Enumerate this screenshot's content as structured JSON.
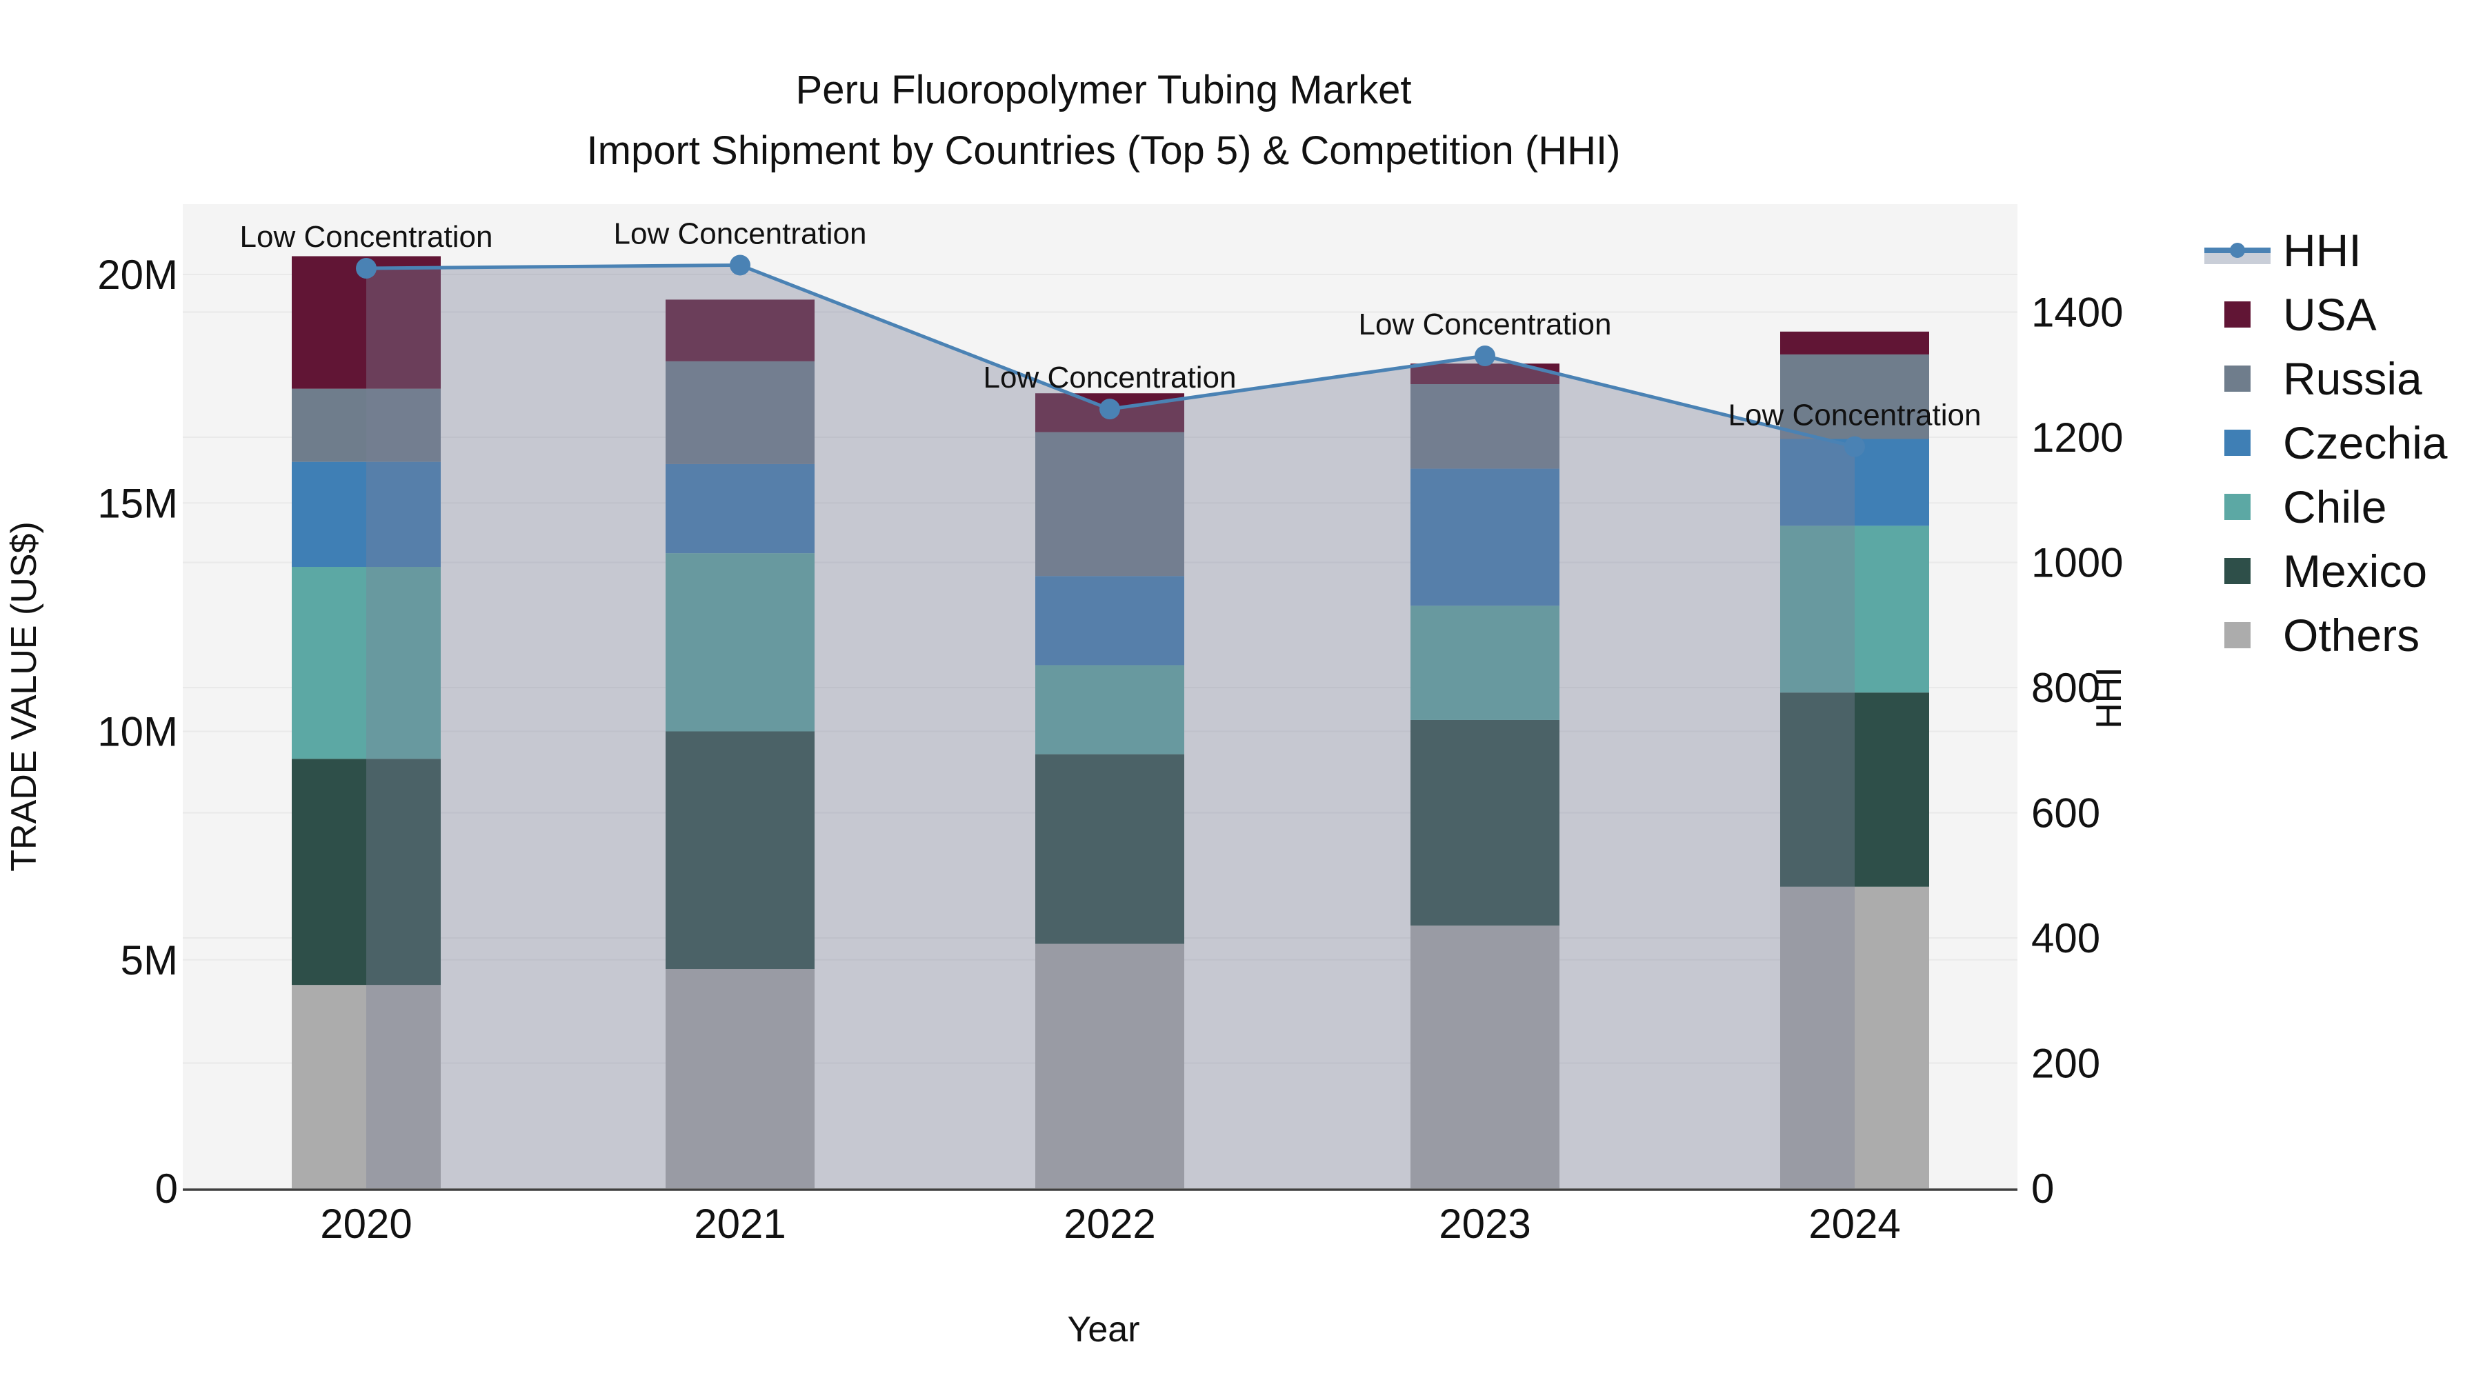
{
  "title": {
    "line1": "Peru Fluoropolymer Tubing Market",
    "line2": "Import Shipment by Countries (Top 5) & Competition (HHI)"
  },
  "axes": {
    "x": {
      "title": "Year",
      "tick_labels": [
        "2020",
        "2021",
        "2022",
        "2023",
        "2024"
      ]
    },
    "y_left": {
      "title": "TRADE VALUE (US$)",
      "tick_labels": [
        "0",
        "5M",
        "10M",
        "15M",
        "20M"
      ],
      "tick_values_musd": [
        0,
        5,
        10,
        15,
        20
      ]
    },
    "y_right": {
      "title": "HHI",
      "tick_labels": [
        "0",
        "200",
        "400",
        "600",
        "800",
        "1000",
        "1200",
        "1400"
      ],
      "tick_values": [
        0,
        200,
        400,
        600,
        800,
        1000,
        1200,
        1400
      ]
    }
  },
  "chart_data": {
    "type": "combo: stacked-bar (left axis) + line-area (right axis)",
    "categories": [
      "2020",
      "2021",
      "2022",
      "2023",
      "2024"
    ],
    "bar_value_unit": "million US$",
    "series": [
      {
        "name": "Others",
        "color": "#acacac",
        "values": [
          4.45,
          4.8,
          5.35,
          5.75,
          6.6
        ]
      },
      {
        "name": "Mexico",
        "color": "#2e4f49",
        "values": [
          4.95,
          5.2,
          4.15,
          4.5,
          4.25
        ]
      },
      {
        "name": "Chile",
        "color": "#5ca8a4",
        "values": [
          4.2,
          3.9,
          1.95,
          2.5,
          3.65
        ]
      },
      {
        "name": "Czechia",
        "color": "#3f7fb5",
        "values": [
          2.3,
          1.95,
          1.95,
          3.0,
          1.9
        ]
      },
      {
        "name": "Russia",
        "color": "#6f7d8c",
        "values": [
          1.6,
          2.25,
          3.15,
          1.85,
          1.85
        ]
      },
      {
        "name": "USA",
        "color": "#611535",
        "values": [
          2.9,
          1.35,
          0.85,
          0.45,
          0.5
        ]
      }
    ],
    "bar_totals_musd": [
      20.4,
      19.45,
      17.4,
      18.05,
      18.75
    ],
    "line_series": {
      "name": "HHI",
      "axis": "y_right",
      "color": "#4a82b4",
      "area_fill": "rgba(124,130,152,0.38)",
      "values": [
        1470,
        1475,
        1245,
        1330,
        1185
      ]
    },
    "annotations": [
      {
        "text": "Low Concentration",
        "category": "2020"
      },
      {
        "text": "Low Concentration",
        "category": "2021"
      },
      {
        "text": "Low Concentration",
        "category": "2022"
      },
      {
        "text": "Low Concentration",
        "category": "2023"
      },
      {
        "text": "Low Concentration",
        "category": "2024"
      }
    ],
    "y_left_range_musd": [
      0,
      21.5
    ],
    "y_right_range": [
      0,
      1570
    ],
    "grid": true,
    "legend_position": "right"
  },
  "legend": {
    "items": [
      {
        "label": "HHI",
        "type": "line",
        "color": "#4a82b4",
        "band_color": "#c9ced8"
      },
      {
        "label": "USA",
        "type": "swatch",
        "color": "#611535"
      },
      {
        "label": "Russia",
        "type": "swatch",
        "color": "#6f7d8c"
      },
      {
        "label": "Czechia",
        "type": "swatch",
        "color": "#3f7fb5"
      },
      {
        "label": "Chile",
        "type": "swatch",
        "color": "#5ca8a4"
      },
      {
        "label": "Mexico",
        "type": "swatch",
        "color": "#2e4f49"
      },
      {
        "label": "Others",
        "type": "swatch",
        "color": "#acacac"
      }
    ]
  },
  "colors": {
    "plot_background": "#f4f4f4",
    "page_background": "#ffffff",
    "gridline": "#e9e9e9",
    "axis_line": "#3f3f3f",
    "text": "#111111",
    "hhi_line": "#4a82b4",
    "hhi_area_overlay": "rgba(124,130,152,0.38)"
  }
}
